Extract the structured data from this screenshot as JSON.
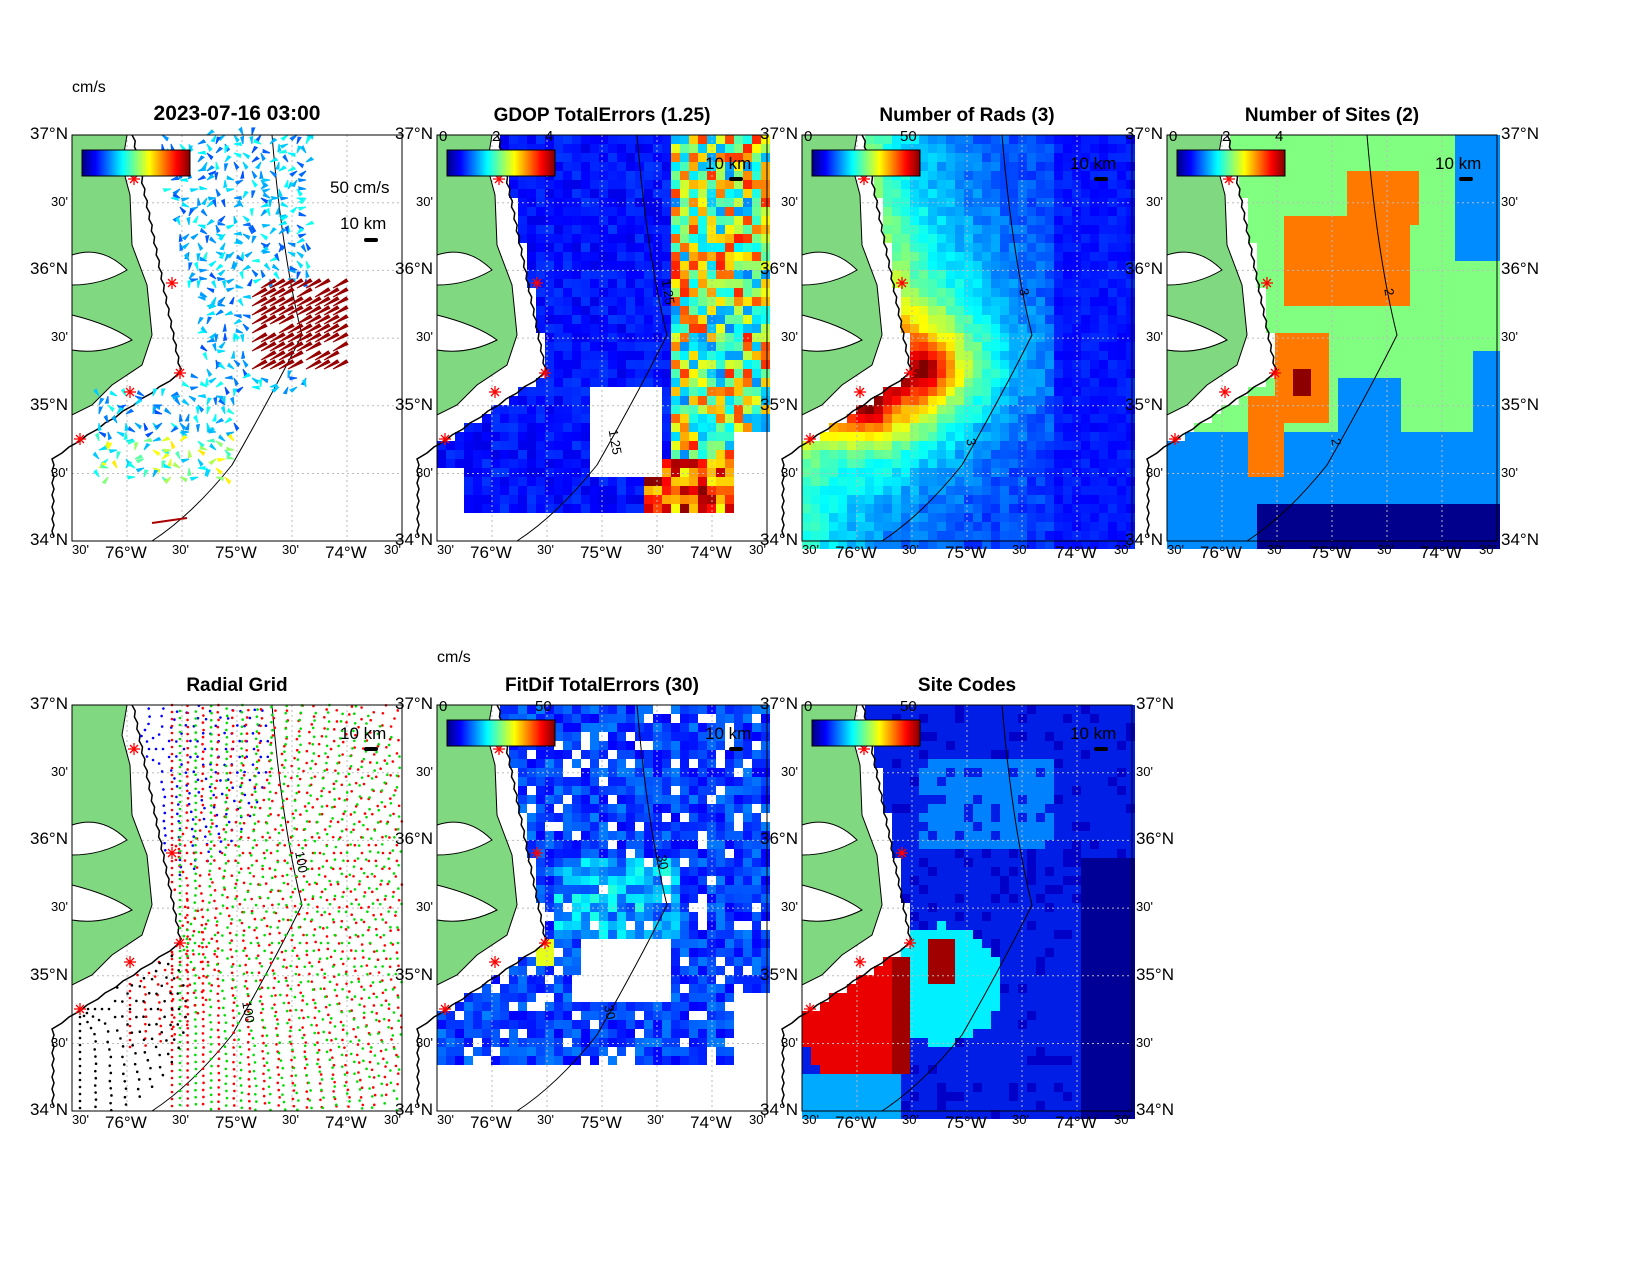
{
  "axes": {
    "lat_labels": [
      "37°N",
      "30'",
      "36°N",
      "30'",
      "35°N",
      "30'",
      "34°N"
    ],
    "lon_labels": [
      "30'",
      "76°W",
      "30'",
      "75°W",
      "30'",
      "74°W",
      "30'"
    ]
  },
  "colors": {
    "land": "#80d980",
    "site": "#ff0000",
    "grid": "#bbbbbb"
  },
  "panels": [
    {
      "id": "currents",
      "title": "2023-07-16 03:00",
      "unit": "cm/s",
      "cbar_ticks": [],
      "scale_label": "10 km",
      "vector_label": "50 cm/s",
      "contour_label": "",
      "kind": "vectors"
    },
    {
      "id": "gdop",
      "title": "GDOP TotalErrors (1.25)",
      "unit": "",
      "cbar_ticks": [
        "0",
        "2",
        "4"
      ],
      "scale_label": "10 km",
      "contour_label": "1.25",
      "kind": "gdop"
    },
    {
      "id": "rads",
      "title": "Number of Rads (3)",
      "unit": "",
      "cbar_ticks": [
        "0",
        "50"
      ],
      "scale_label": "10 km",
      "contour_label": "3",
      "kind": "rads"
    },
    {
      "id": "sites",
      "title": "Number of Sites (2)",
      "unit": "",
      "cbar_ticks": [
        "0",
        "2",
        "4"
      ],
      "scale_label": "10 km",
      "contour_label": "2",
      "kind": "sites"
    },
    {
      "id": "radialgrid",
      "title": "Radial Grid",
      "unit": "",
      "cbar_ticks": [],
      "scale_label": "10 km",
      "contour_label": "100",
      "kind": "grid"
    },
    {
      "id": "fitdif",
      "title": "FitDif TotalErrors (30)",
      "unit": "cm/s",
      "cbar_ticks": [
        "0",
        "50"
      ],
      "scale_label": "10 km",
      "contour_label": "30",
      "kind": "fitdif"
    },
    {
      "id": "sitecodes",
      "title": "Site Codes",
      "unit": "",
      "cbar_ticks": [
        "0",
        "50"
      ],
      "scale_label": "10 km",
      "contour_label": "",
      "kind": "codes"
    }
  ]
}
